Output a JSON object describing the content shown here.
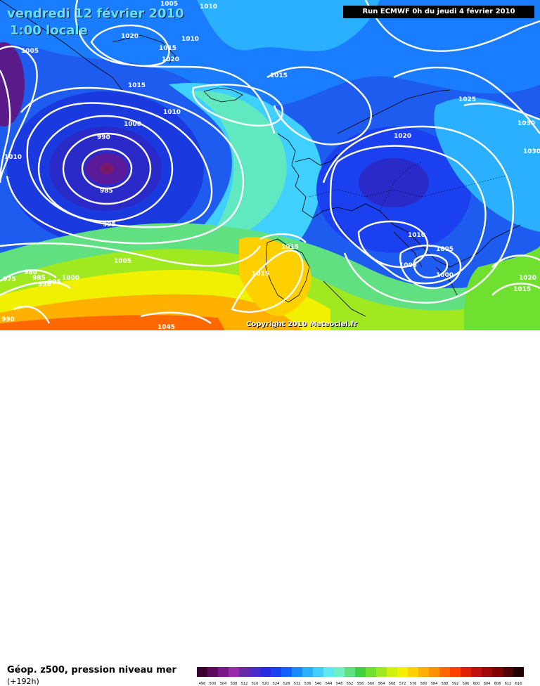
{
  "header": {
    "date": "vendredi 12 février 2010",
    "time": "1:00 locale",
    "run": "Run ECMWF 0h du jeudi 4 février 2010"
  },
  "copyright": "Copyright 2010 Meteociel.fr",
  "legend": {
    "title": "Géop. z500, pression niveau mer",
    "subtitle": "(+192h)",
    "scale_values": [
      "496",
      "500",
      "504",
      "508",
      "512",
      "516",
      "520",
      "524",
      "528",
      "532",
      "536",
      "540",
      "544",
      "548",
      "552",
      "556",
      "560",
      "564",
      "568",
      "572",
      "576",
      "580",
      "584",
      "588",
      "592",
      "596",
      "600",
      "604",
      "608",
      "612",
      "616"
    ],
    "scale_colors": [
      "#3a0030",
      "#5a0a5a",
      "#7a1a8a",
      "#9a2aa8",
      "#6a2aa8",
      "#4a2ac8",
      "#2a2ae0",
      "#1a40f0",
      "#1060ff",
      "#1a8aff",
      "#2ab0ff",
      "#40d0ff",
      "#60e8f0",
      "#70f0c0",
      "#60e080",
      "#40d040",
      "#70e030",
      "#a0e820",
      "#d0f010",
      "#f0f000",
      "#ffd000",
      "#ffb000",
      "#ff9000",
      "#ff6800",
      "#ff4000",
      "#e02000",
      "#c01010",
      "#a00808",
      "#800000",
      "#500000",
      "#200000"
    ]
  },
  "isobars": [
    {
      "label": "1005",
      "pos": "top-center-left"
    },
    {
      "label": "1010",
      "pos": "top-center-left"
    },
    {
      "label": "1020",
      "pos": "north-iceland"
    },
    {
      "label": "1015",
      "pos": "north-iceland"
    },
    {
      "label": "1010",
      "pos": "north-iceland"
    },
    {
      "label": "1020",
      "pos": "north-iceland"
    },
    {
      "label": "1005",
      "pos": "west-greenland"
    },
    {
      "label": "1015",
      "pos": "south-greenland"
    },
    {
      "label": "1015",
      "pos": "north-atlantic"
    },
    {
      "label": "1010",
      "pos": "atlantic-low-north"
    },
    {
      "label": "1000",
      "pos": "atlantic-low"
    },
    {
      "label": "990",
      "pos": "atlantic-low"
    },
    {
      "label": "985",
      "pos": "atlantic-low-center"
    },
    {
      "label": "995",
      "pos": "atlantic-low-south"
    },
    {
      "label": "1010",
      "pos": "west-edge"
    },
    {
      "label": "1005",
      "pos": "mid-atlantic"
    },
    {
      "label": "980",
      "pos": "southwest"
    },
    {
      "label": "985",
      "pos": "southwest"
    },
    {
      "label": "990",
      "pos": "southwest"
    },
    {
      "label": "995",
      "pos": "southwest"
    },
    {
      "label": "1000",
      "pos": "southwest"
    },
    {
      "label": "975",
      "pos": "southwest"
    },
    {
      "label": "990",
      "pos": "bottom-left"
    },
    {
      "label": "1025",
      "pos": "northeast"
    },
    {
      "label": "1030",
      "pos": "east"
    },
    {
      "label": "1030",
      "pos": "east"
    },
    {
      "label": "1020",
      "pos": "europe"
    },
    {
      "label": "1015",
      "pos": "iberia"
    },
    {
      "label": "1015",
      "pos": "iberia-north"
    },
    {
      "label": "1010",
      "pos": "italy"
    },
    {
      "label": "1005",
      "pos": "balkans"
    },
    {
      "label": "1005",
      "pos": "mediterranean"
    },
    {
      "label": "1000",
      "pos": "aegean"
    },
    {
      "label": "1020",
      "pos": "southeast"
    },
    {
      "label": "1015",
      "pos": "southeast"
    },
    {
      "label": "1045",
      "pos": "bottom"
    }
  ]
}
